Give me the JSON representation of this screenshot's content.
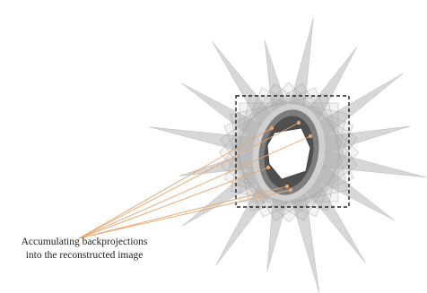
{
  "caption": {
    "line1": "Accumulating backprojections",
    "line2": "into the reconstructed image"
  },
  "colors": {
    "fan_fill": "#9e9e9e",
    "fan_stroke": "#8c8c8c",
    "box_fill": "#b5b5b5",
    "box_stroke": "#9a9a9a",
    "frame": "#222222",
    "ring_outer": "#6e6e6e",
    "ring_inner": "#4a4a4a",
    "ring_light": "#d6d6d6",
    "pointer": "#e8a670"
  },
  "diagram": {
    "projection_count": 16,
    "pointer_count": 6
  }
}
